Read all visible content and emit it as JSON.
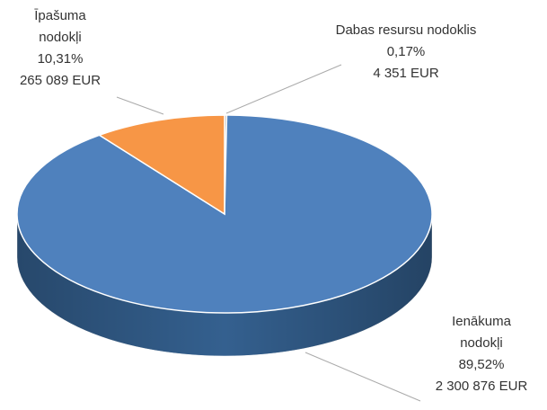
{
  "chart_data": {
    "type": "pie3d",
    "categories": [
      "Dabas resursu nodoklis",
      "Ienākuma nodokļi",
      "Īpašuma nodokļi"
    ],
    "values": [
      0.17,
      89.52,
      10.31
    ],
    "value_labels": [
      "0,17%",
      "89,52%",
      "10,31%"
    ],
    "amounts": [
      4351,
      2300876,
      265089
    ],
    "amount_labels": [
      "4 351 EUR",
      "2 300 876 EUR",
      "265 089 EUR"
    ],
    "colors": [
      "#a5a5a5",
      "#4f81bd",
      "#f79646"
    ],
    "side_colors": [
      "#7a7a7a",
      "#34608f",
      "#c06f2a"
    ]
  }
}
